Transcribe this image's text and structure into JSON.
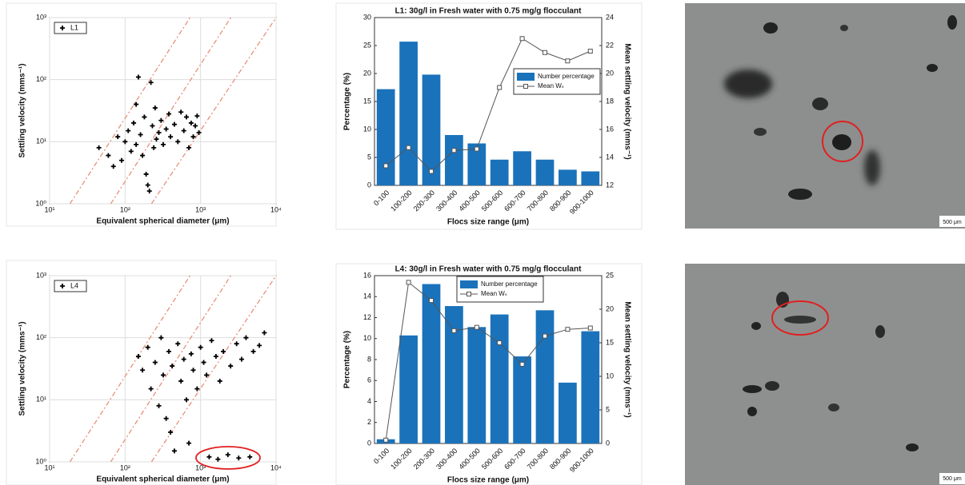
{
  "chart_data": [
    {
      "type": "scatter",
      "xlabel": "Equivalent spherical diameter (μm)",
      "ylabel": "Settling velocity (mms⁻¹)",
      "xscale": "log",
      "yscale": "log",
      "grid": true,
      "legend": "upper left",
      "xlim": [
        10,
        10000
      ],
      "xticks": [
        {
          "value": 10,
          "label": "10¹"
        },
        {
          "value": 100,
          "label": "10²"
        },
        {
          "value": 1000,
          "label": "10³"
        },
        {
          "value": 10000,
          "label": "10⁴"
        }
      ],
      "ylim": [
        1,
        1000
      ],
      "yticks": [
        {
          "value": 1,
          "label": "10⁰"
        },
        {
          "value": 10,
          "label": "10¹"
        },
        {
          "value": 100,
          "label": "10²"
        },
        {
          "value": 1000,
          "label": "10³"
        }
      ],
      "series": [
        {
          "name": "L1",
          "color": "#000000",
          "x": [
            45,
            60,
            70,
            80,
            90,
            100,
            110,
            120,
            130,
            140,
            150,
            160,
            170,
            180,
            190,
            200,
            210,
            220,
            230,
            240,
            250,
            260,
            280,
            300,
            320,
            350,
            380,
            400,
            450,
            500,
            550,
            600,
            650,
            700,
            750,
            800,
            850,
            900,
            950,
            140
          ],
          "values": [
            8,
            6,
            4,
            12,
            5,
            10,
            15,
            7,
            20,
            9,
            110,
            13,
            6,
            25,
            3,
            2,
            1.6,
            90,
            18,
            8,
            35,
            11,
            14,
            22,
            9,
            16,
            28,
            12,
            19,
            10,
            30,
            15,
            25,
            8,
            20,
            12,
            18,
            26,
            14,
            40
          ]
        }
      ]
    },
    {
      "type": "bar",
      "title": "L1: 30g/l in Fresh water with 0.75 mg/g flocculant",
      "xlabel": "Flocs size range (μm)",
      "ylabel": "Percentage (%)",
      "y2label": "Mean settling velocity (mms⁻¹)",
      "legend": "center right",
      "categories": [
        "0-100",
        "100-200",
        "200-300",
        "300-400",
        "400-500",
        "500-600",
        "600-700",
        "700-800",
        "800-900",
        "900-1000"
      ],
      "ylim": [
        0,
        30
      ],
      "yticks": [
        0,
        5,
        10,
        15,
        20,
        25,
        30
      ],
      "y2lim": [
        12,
        24
      ],
      "y2ticks": [
        12,
        14,
        16,
        18,
        20,
        22,
        24
      ],
      "series": [
        {
          "name": "Number percentage",
          "color": "#1a72bb",
          "values": [
            17.2,
            25.7,
            19.8,
            9.0,
            7.5,
            4.6,
            6.1,
            4.6,
            2.8,
            2.5
          ]
        },
        {
          "name": "Mean Wₛ",
          "color": "#555555",
          "axis": "y2",
          "values": [
            13.4,
            14.7,
            13.0,
            14.5,
            14.6,
            19.0,
            22.5,
            21.5,
            20.9,
            21.6
          ]
        }
      ]
    },
    {
      "type": "scatter",
      "xlabel": "Equivalent spherical diameter (μm)",
      "ylabel": "Settling velocity (mms⁻¹)",
      "xscale": "log",
      "yscale": "log",
      "grid": true,
      "legend": "upper left",
      "xlim": [
        10,
        10000
      ],
      "xticks": [
        {
          "value": 10,
          "label": "10¹"
        },
        {
          "value": 100,
          "label": "10²"
        },
        {
          "value": 1000,
          "label": "10³"
        },
        {
          "value": 10000,
          "label": "10⁴"
        }
      ],
      "ylim": [
        1,
        1000
      ],
      "yticks": [
        {
          "value": 1,
          "label": "10⁰"
        },
        {
          "value": 10,
          "label": "10¹"
        },
        {
          "value": 100,
          "label": "10²"
        },
        {
          "value": 1000,
          "label": "10³"
        }
      ],
      "series": [
        {
          "name": "L4",
          "color": "#000000",
          "x": [
            150,
            170,
            200,
            220,
            250,
            280,
            300,
            320,
            350,
            380,
            400,
            420,
            450,
            500,
            550,
            600,
            650,
            700,
            750,
            800,
            900,
            1000,
            1100,
            1200,
            1400,
            1600,
            1800,
            2000,
            2500,
            3000,
            3500,
            4000,
            5000,
            6000,
            7000,
            1300,
            1700,
            2300,
            3200,
            4500
          ],
          "values": [
            50,
            30,
            70,
            15,
            40,
            8,
            100,
            25,
            5,
            60,
            3,
            35,
            1.5,
            80,
            20,
            45,
            10,
            2,
            55,
            30,
            15,
            70,
            40,
            25,
            90,
            50,
            20,
            60,
            35,
            80,
            45,
            100,
            60,
            75,
            120,
            1.2,
            1.1,
            1.3,
            1.15,
            1.2
          ]
        }
      ]
    },
    {
      "type": "bar",
      "title": "L4: 30g/l in Fresh water with 0.75 mg/g flocculant",
      "xlabel": "Flocs size range (μm)",
      "ylabel": "Percentage (%)",
      "y2label": "Mean settling velocity (mms⁻¹)",
      "legend": "upper center",
      "categories": [
        "0-100",
        "100-200",
        "200-300",
        "300-400",
        "400-500",
        "500-600",
        "600-700",
        "700-800",
        "800-900",
        "900-1000"
      ],
      "ylim": [
        0,
        16
      ],
      "yticks": [
        0,
        2,
        4,
        6,
        8,
        10,
        12,
        14,
        16
      ],
      "y2lim": [
        0,
        25
      ],
      "y2ticks": [
        0,
        5,
        10,
        15,
        20,
        25
      ],
      "series": [
        {
          "name": "Number percentage",
          "color": "#1a72bb",
          "values": [
            0.4,
            10.3,
            15.2,
            13.1,
            11.1,
            12.3,
            8.3,
            12.7,
            5.8,
            10.7
          ]
        },
        {
          "name": "Mean Wₛ",
          "color": "#555555",
          "axis": "y2",
          "values": [
            0.5,
            24.0,
            21.3,
            16.8,
            17.3,
            15.0,
            11.8,
            16.0,
            17.0,
            17.2
          ]
        }
      ]
    }
  ],
  "images": [
    {
      "scale_label": "500 μm"
    },
    {
      "scale_label": "500 μm"
    }
  ]
}
